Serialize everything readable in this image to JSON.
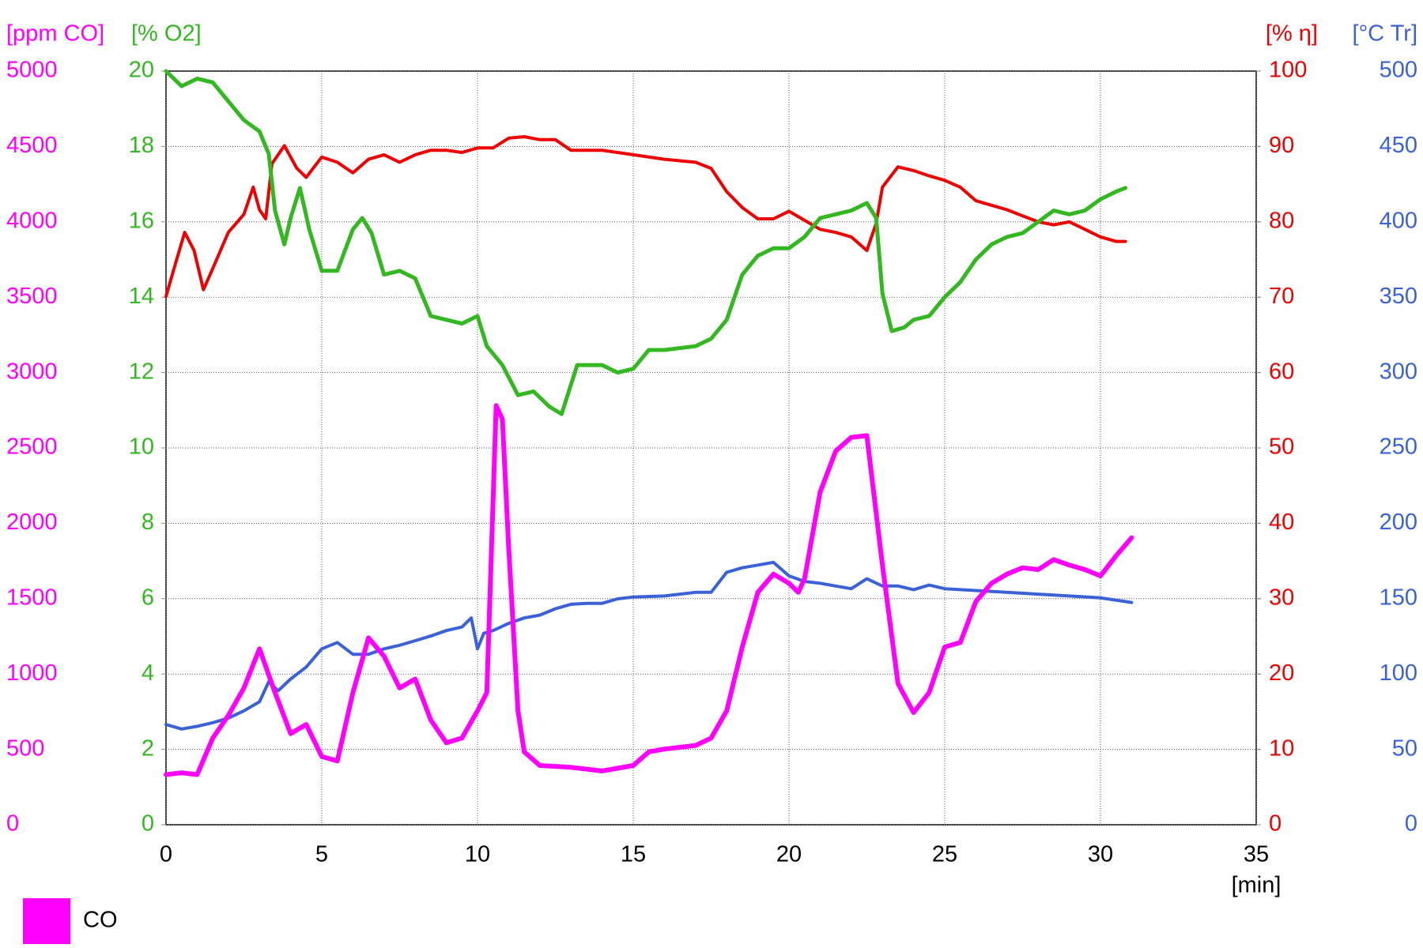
{
  "chart_data": {
    "type": "line",
    "xlabel": "[min]",
    "xlim": [
      0,
      35
    ],
    "xticks": [
      0,
      5,
      10,
      15,
      20,
      25,
      30,
      35
    ],
    "grid": true,
    "y_axes": [
      {
        "label": "[ppm CO]",
        "color": "#ff00ff",
        "ylim": [
          0,
          5000
        ],
        "yticks": [
          0,
          500,
          1000,
          1500,
          2000,
          2500,
          3000,
          3500,
          4000,
          4500,
          5000
        ]
      },
      {
        "label": "[% O2]",
        "color": "#33b822",
        "ylim": [
          0,
          20
        ],
        "yticks": [
          0,
          2,
          4,
          6,
          8,
          10,
          12,
          14,
          16,
          18,
          20
        ]
      },
      {
        "label": "[% η]",
        "color": "#ee0000",
        "ylim": [
          0,
          100
        ],
        "yticks": [
          0,
          10,
          20,
          30,
          40,
          50,
          60,
          70,
          80,
          90,
          100
        ]
      },
      {
        "label": "[°C Tr]",
        "color": "#3a62d6",
        "ylim": [
          0,
          500
        ],
        "yticks": [
          0,
          50,
          100,
          150,
          200,
          250,
          300,
          350,
          400,
          450,
          500
        ]
      }
    ],
    "series": [
      {
        "color": "#3a62d6",
        "axis": 3,
        "x": [
          0,
          0.5,
          1,
          1.5,
          2,
          2.5,
          3,
          3.3,
          3.6,
          4,
          4.5,
          5,
          5.5,
          6,
          6.5,
          7,
          7.5,
          8,
          8.5,
          9,
          9.5,
          9.8,
          10,
          10.2,
          10.5,
          11,
          11.5,
          12,
          12.5,
          13,
          13.5,
          14,
          14.5,
          15,
          16,
          17,
          17.5,
          18,
          18.5,
          19,
          19.5,
          20,
          20.5,
          21,
          21.5,
          22,
          22.5,
          23,
          23.5,
          24,
          24.5,
          25,
          26,
          27,
          28,
          29,
          30,
          31
        ],
        "values": [
          66.5,
          63.5,
          65.3,
          67.7,
          70.7,
          75.6,
          81.6,
          94.9,
          88.9,
          96.7,
          104.6,
          116.7,
          120.9,
          113.1,
          113.1,
          116.7,
          119.1,
          122.1,
          125.2,
          128.8,
          131.2,
          137.2,
          116.7,
          127.0,
          128.8,
          133.6,
          137.2,
          139.1,
          143.3,
          146.3,
          146.9,
          146.9,
          149.9,
          151.1,
          151.8,
          154.2,
          154.2,
          167.5,
          170.5,
          172.3,
          174.1,
          165.1,
          161.4,
          160.2,
          158.4,
          156.6,
          163.2,
          158.4,
          158.4,
          156.0,
          159.0,
          156.6,
          155.4,
          154.2,
          153.0,
          151.8,
          150.5,
          147.5
        ]
      },
      {
        "color": "#ee0000",
        "axis": 2,
        "x": [
          0,
          0.3,
          0.6,
          0.9,
          1.2,
          1.5,
          2,
          2.5,
          2.8,
          3,
          3.2,
          3.4,
          3.8,
          4.2,
          4.5,
          5,
          5.5,
          6,
          6.5,
          7,
          7.5,
          8,
          8.5,
          9,
          9.5,
          10,
          10.5,
          11,
          11.5,
          12,
          12.5,
          13,
          14,
          15,
          16,
          17,
          17.5,
          18,
          18.5,
          19,
          19.5,
          20,
          20.5,
          21,
          21.5,
          22,
          22.5,
          22.8,
          23,
          23.5,
          24,
          24.5,
          25,
          25.5,
          26,
          26.5,
          27,
          27.5,
          28,
          28.5,
          29,
          29.5,
          30,
          30.5,
          30.8
        ],
        "values": [
          70.1,
          74.4,
          78.6,
          76.2,
          71.0,
          73.8,
          78.6,
          81.0,
          84.6,
          81.6,
          80.4,
          87.7,
          90.1,
          87.1,
          85.9,
          88.6,
          87.9,
          86.5,
          88.3,
          88.9,
          87.9,
          88.9,
          89.5,
          89.5,
          89.2,
          89.8,
          89.8,
          91.1,
          91.3,
          90.9,
          90.9,
          89.5,
          89.5,
          88.9,
          88.3,
          87.9,
          87.1,
          84.0,
          81.9,
          80.4,
          80.4,
          81.4,
          80.2,
          79.0,
          78.6,
          78.0,
          76.2,
          79.8,
          84.6,
          87.3,
          86.8,
          86.1,
          85.5,
          84.6,
          82.8,
          82.2,
          81.6,
          80.8,
          80.0,
          79.6,
          80.0,
          79.0,
          78.0,
          77.4,
          77.4
        ]
      },
      {
        "color": "#33b822",
        "axis": 1,
        "x": [
          0,
          0.5,
          1,
          1.5,
          2,
          2.5,
          3,
          3.3,
          3.5,
          3.8,
          4,
          4.3,
          4.6,
          5,
          5.5,
          6,
          6.3,
          6.6,
          7,
          7.5,
          8,
          8.5,
          9,
          9.5,
          10,
          10.3,
          10.8,
          11.3,
          11.8,
          12.3,
          12.7,
          13.2,
          14,
          14.5,
          15,
          15.5,
          16,
          17,
          17.5,
          18,
          18.5,
          19,
          19.5,
          20,
          20.5,
          21,
          21.5,
          22,
          22.5,
          22.8,
          23,
          23.3,
          23.7,
          24,
          24.5,
          25,
          25.5,
          26,
          26.5,
          27,
          27.5,
          28,
          28.5,
          29,
          29.5,
          30,
          30.5,
          30.8
        ],
        "values": [
          20,
          19.6,
          19.8,
          19.7,
          19.2,
          18.7,
          18.4,
          17.8,
          16.3,
          15.4,
          16.1,
          16.9,
          15.8,
          14.7,
          14.7,
          15.8,
          16.1,
          15.7,
          14.6,
          14.7,
          14.5,
          13.5,
          13.4,
          13.3,
          13.5,
          12.7,
          12.2,
          11.4,
          11.5,
          11.1,
          10.9,
          12.2,
          12.2,
          12.0,
          12.1,
          12.6,
          12.6,
          12.7,
          12.9,
          13.4,
          14.6,
          15.1,
          15.3,
          15.3,
          15.6,
          16.1,
          16.2,
          16.3,
          16.5,
          16.1,
          14.1,
          13.1,
          13.2,
          13.4,
          13.5,
          14.0,
          14.4,
          15.0,
          15.4,
          15.6,
          15.7,
          16.0,
          16.3,
          16.2,
          16.3,
          16.6,
          16.8,
          16.9
        ]
      },
      {
        "name": "CO",
        "color": "#ff00ff",
        "axis": 0,
        "x": [
          0,
          0.5,
          1,
          1.5,
          2,
          2.5,
          3,
          3.5,
          4,
          4.5,
          5,
          5.5,
          6,
          6.5,
          7,
          7.5,
          8,
          8.5,
          9,
          9.5,
          10,
          10.3,
          10.6,
          10.8,
          11,
          11.3,
          11.5,
          12,
          13,
          14,
          15,
          15.5,
          16,
          17,
          17.5,
          18,
          18.5,
          19,
          19.5,
          20,
          20.3,
          20.5,
          21,
          21.5,
          22,
          22.5,
          23,
          23.5,
          24,
          24.5,
          25,
          25.5,
          26,
          26.5,
          27,
          27.5,
          28,
          28.5,
          29,
          29.5,
          30,
          30.5,
          31
        ],
        "values": [
          333,
          345,
          333,
          575,
          725,
          907,
          1167,
          877,
          605,
          665,
          453,
          423,
          877,
          1240,
          1118,
          907,
          967,
          695,
          544,
          575,
          756,
          877,
          2781,
          2690,
          1844,
          756,
          484,
          393,
          381,
          357,
          393,
          484,
          502,
          526,
          575,
          756,
          1179,
          1542,
          1663,
          1602,
          1542,
          1632,
          2207,
          2479,
          2570,
          2582,
          1723,
          937,
          744,
          877,
          1179,
          1209,
          1481,
          1602,
          1663,
          1705,
          1693,
          1759,
          1723,
          1693,
          1651,
          1784,
          1904
        ]
      }
    ]
  }
}
